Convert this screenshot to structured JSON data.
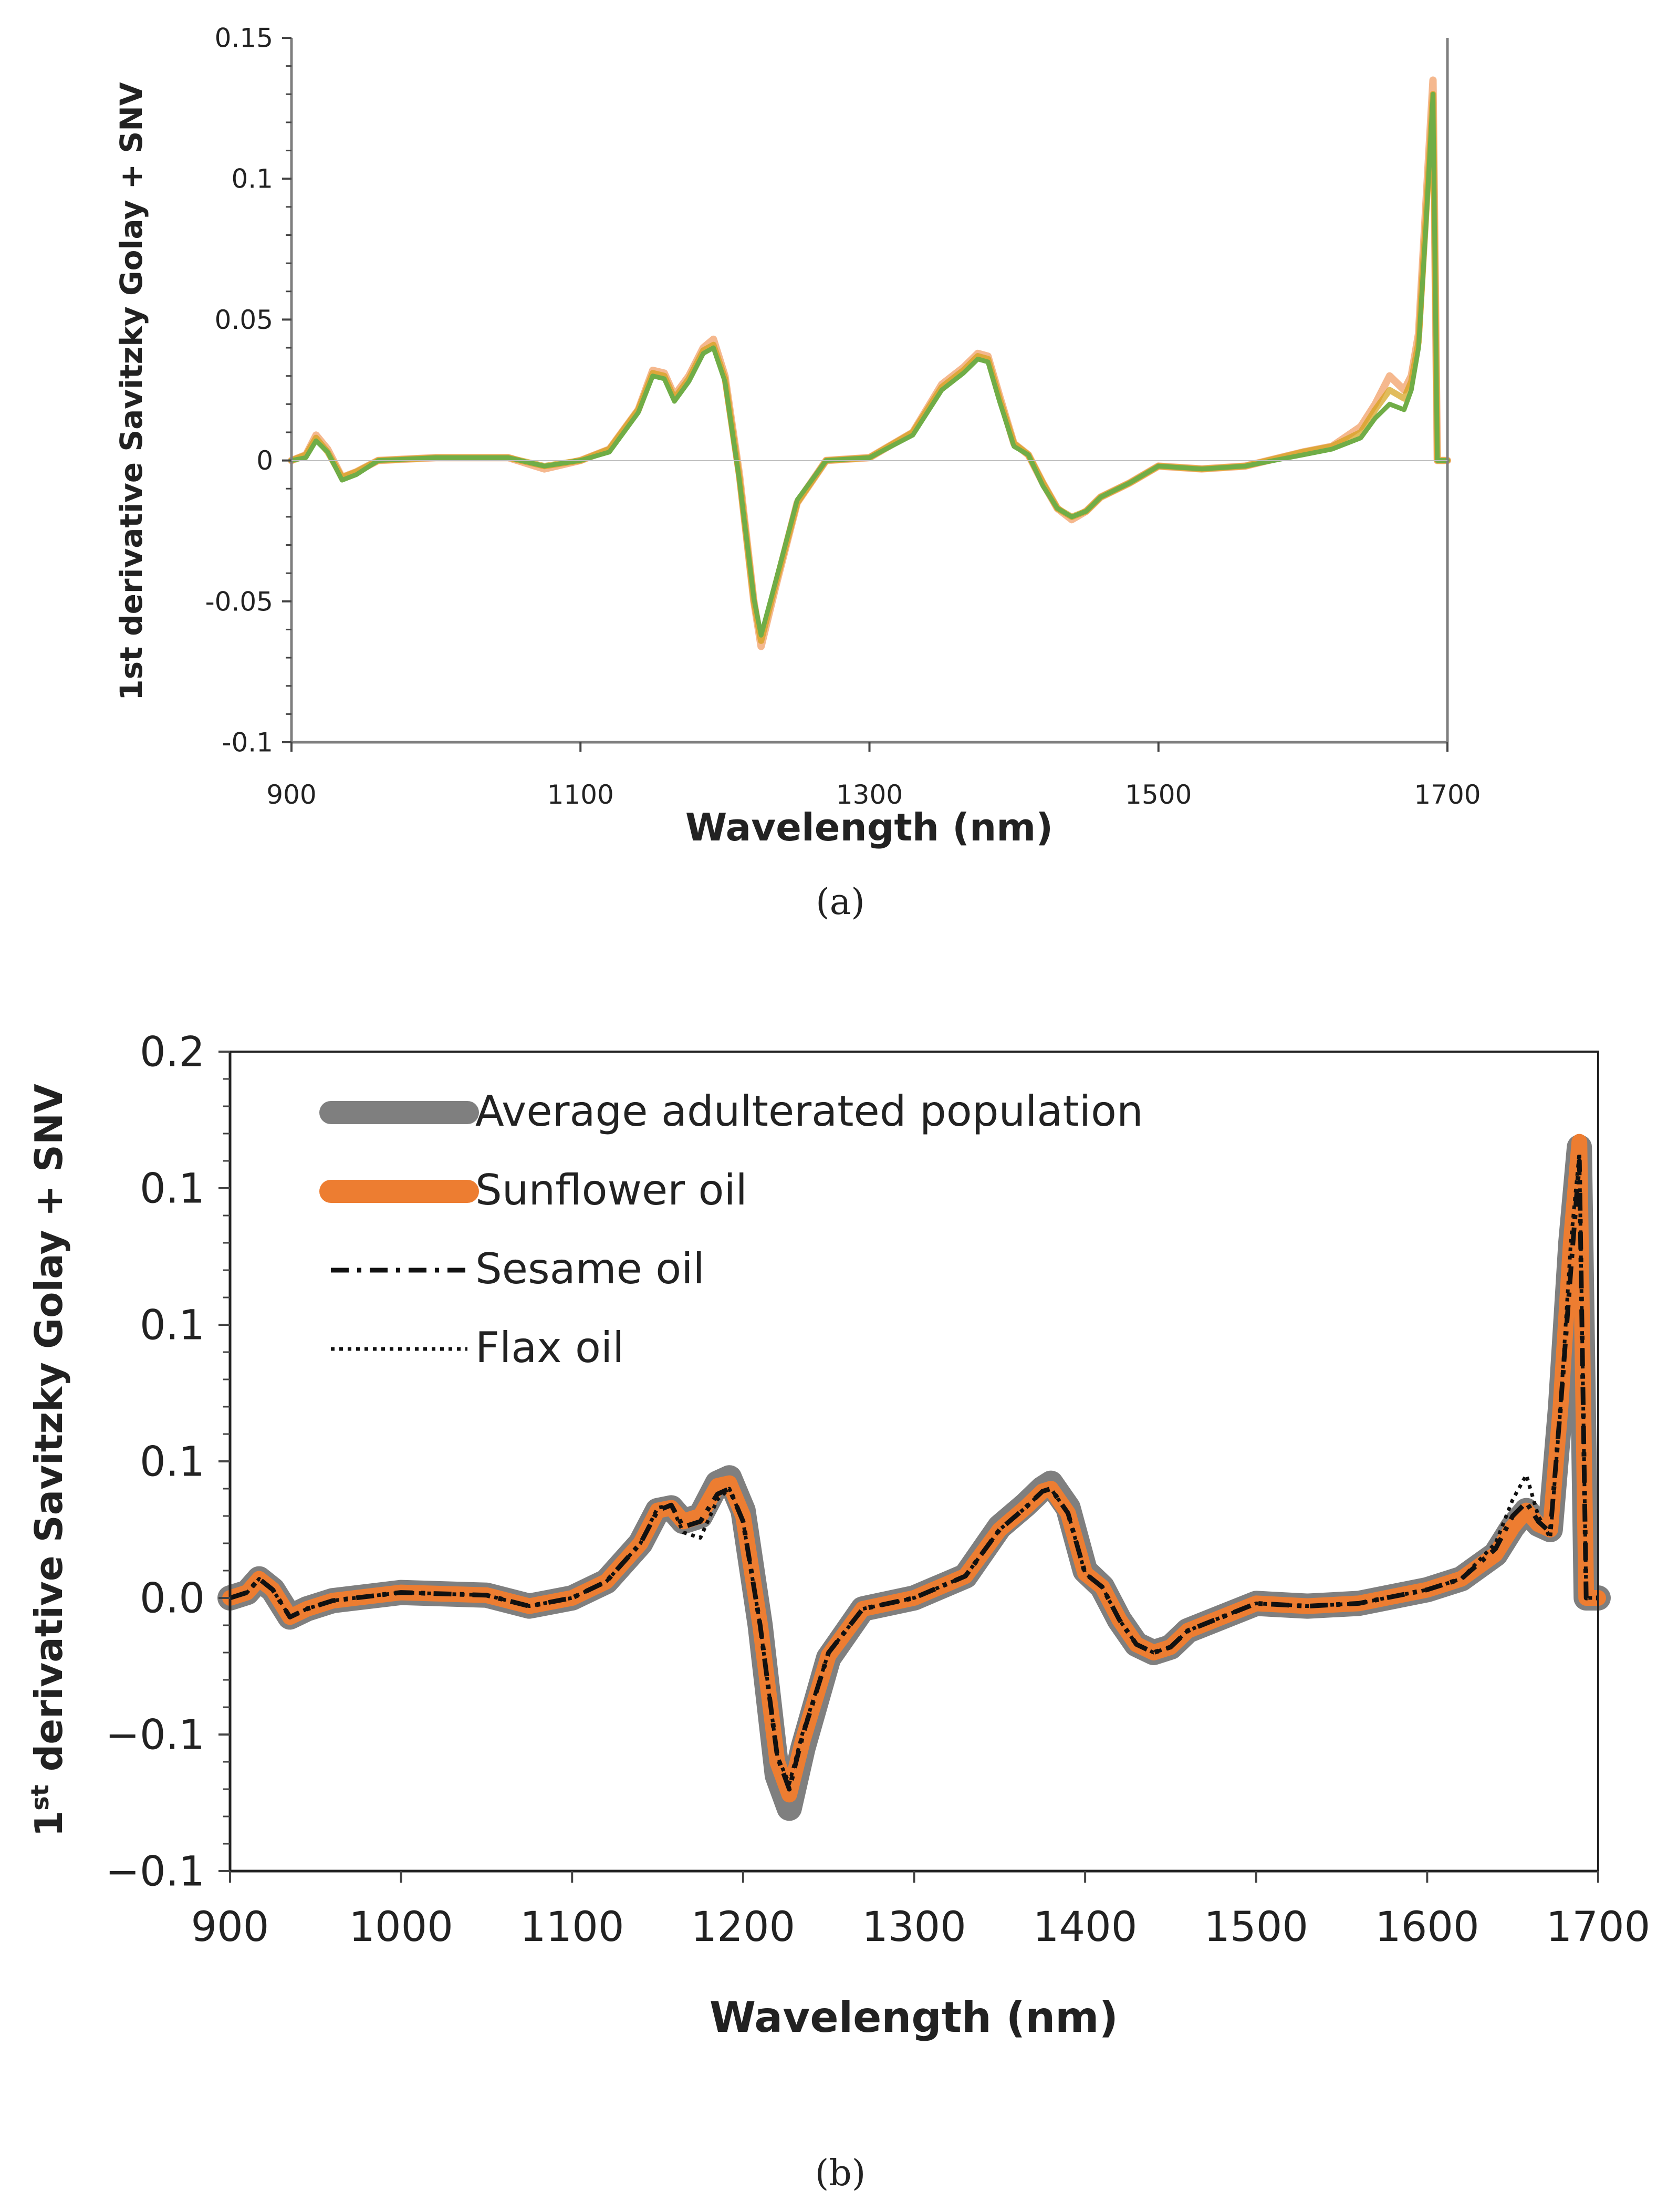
{
  "chart_data": [
    {
      "id": "a",
      "panel_label": "(a)",
      "type": "line",
      "title": "",
      "xlabel": "Wavelength (nm)",
      "ylabel": "1st derivative Savitzky Golay + SNV",
      "xlim": [
        900,
        1700
      ],
      "ylim": [
        -0.1,
        0.15
      ],
      "xticks": [
        900,
        1100,
        1300,
        1500,
        1700
      ],
      "xtick_labels": [
        "900",
        "1100",
        "1300",
        "1500",
        "1700"
      ],
      "yticks": [
        -0.1,
        -0.05,
        0,
        0.05,
        0.1,
        0.15
      ],
      "ytick_labels": [
        "-0.1",
        "-0.05",
        "0",
        "0.05",
        "0.1",
        "0.15"
      ],
      "grid": false,
      "legend": "none",
      "series": [
        {
          "name": "sample spectra (orange)",
          "color": "#ED7D31",
          "x": [
            900,
            910,
            917,
            925,
            935,
            945,
            960,
            1000,
            1050,
            1075,
            1100,
            1120,
            1140,
            1150,
            1158,
            1165,
            1175,
            1185,
            1192,
            1200,
            1210,
            1220,
            1225,
            1235,
            1250,
            1270,
            1300,
            1330,
            1350,
            1365,
            1375,
            1382,
            1390,
            1400,
            1410,
            1420,
            1430,
            1440,
            1450,
            1460,
            1480,
            1500,
            1530,
            1560,
            1600,
            1620,
            1640,
            1650,
            1660,
            1670,
            1675,
            1680,
            1685,
            1690,
            1693,
            1700
          ],
          "y": [
            0,
            0.002,
            0.009,
            0.004,
            -0.006,
            -0.004,
            0,
            0.001,
            0.001,
            -0.003,
            0,
            0.004,
            0.018,
            0.032,
            0.031,
            0.023,
            0.03,
            0.04,
            0.043,
            0.03,
            -0.005,
            -0.05,
            -0.066,
            -0.045,
            -0.015,
            0,
            0.001,
            0.01,
            0.027,
            0.033,
            0.038,
            0.037,
            0.023,
            0.006,
            0.002,
            -0.008,
            -0.017,
            -0.021,
            -0.018,
            -0.013,
            -0.008,
            -0.002,
            -0.003,
            -0.002,
            0.003,
            0.005,
            0.012,
            0.02,
            0.03,
            0.025,
            0.03,
            0.045,
            0.09,
            0.135,
            0,
            0
          ]
        },
        {
          "name": "sample spectra (gold)",
          "color": "#D4A017",
          "x": [
            900,
            910,
            917,
            925,
            935,
            945,
            960,
            1000,
            1050,
            1075,
            1100,
            1120,
            1140,
            1150,
            1158,
            1165,
            1175,
            1185,
            1192,
            1200,
            1210,
            1220,
            1225,
            1235,
            1250,
            1270,
            1300,
            1330,
            1350,
            1365,
            1375,
            1382,
            1390,
            1400,
            1410,
            1420,
            1430,
            1440,
            1450,
            1460,
            1480,
            1500,
            1530,
            1560,
            1600,
            1620,
            1640,
            1650,
            1660,
            1670,
            1675,
            1680,
            1685,
            1690,
            1693,
            1700
          ],
          "y": [
            0,
            0.002,
            0.008,
            0.003,
            -0.006,
            -0.004,
            0,
            0.001,
            0.001,
            -0.002,
            0,
            0.004,
            0.018,
            0.031,
            0.03,
            0.022,
            0.029,
            0.039,
            0.041,
            0.029,
            -0.006,
            -0.05,
            -0.064,
            -0.044,
            -0.015,
            0,
            0.001,
            0.01,
            0.026,
            0.032,
            0.037,
            0.036,
            0.022,
            0.006,
            0.002,
            -0.008,
            -0.017,
            -0.02,
            -0.018,
            -0.013,
            -0.008,
            -0.002,
            -0.003,
            -0.002,
            0.003,
            0.005,
            0.01,
            0.018,
            0.025,
            0.022,
            0.028,
            0.042,
            0.085,
            0.13,
            0,
            0
          ]
        },
        {
          "name": "sample spectra (green)",
          "color": "#70AD47",
          "x": [
            900,
            910,
            917,
            925,
            935,
            945,
            960,
            1000,
            1050,
            1075,
            1100,
            1120,
            1140,
            1150,
            1158,
            1165,
            1175,
            1185,
            1192,
            1200,
            1210,
            1220,
            1225,
            1235,
            1250,
            1270,
            1300,
            1330,
            1350,
            1365,
            1375,
            1382,
            1390,
            1400,
            1410,
            1420,
            1430,
            1440,
            1450,
            1460,
            1480,
            1500,
            1530,
            1560,
            1600,
            1620,
            1640,
            1650,
            1660,
            1670,
            1675,
            1680,
            1685,
            1690,
            1693,
            1700
          ],
          "y": [
            0,
            0.001,
            0.007,
            0.003,
            -0.007,
            -0.005,
            0,
            0.001,
            0.001,
            -0.002,
            0,
            0.003,
            0.017,
            0.03,
            0.029,
            0.021,
            0.028,
            0.038,
            0.04,
            0.028,
            -0.007,
            -0.049,
            -0.062,
            -0.043,
            -0.014,
            0,
            0.001,
            0.009,
            0.025,
            0.031,
            0.036,
            0.035,
            0.021,
            0.005,
            0.002,
            -0.009,
            -0.017,
            -0.02,
            -0.018,
            -0.013,
            -0.008,
            -0.002,
            -0.003,
            -0.002,
            0.002,
            0.004,
            0.008,
            0.015,
            0.02,
            0.018,
            0.025,
            0.04,
            0.082,
            0.13,
            0,
            0
          ]
        }
      ]
    },
    {
      "id": "b",
      "panel_label": "(b)",
      "type": "line",
      "title": "",
      "xlabel": "Wavelength (nm)",
      "ylabel_base": "1",
      "ylabel_superscript": "st",
      "ylabel_rest": " derivative Savitzky Golay + SNV",
      "xlim": [
        900,
        1700
      ],
      "ylim": [
        -0.1,
        0.2
      ],
      "xticks": [
        900,
        1000,
        1100,
        1200,
        1300,
        1400,
        1500,
        1600,
        1700
      ],
      "xtick_labels": [
        "900",
        "1000",
        "1100",
        "1200",
        "1300",
        "1400",
        "1500",
        "1600",
        "1700"
      ],
      "yticks": [
        -0.1,
        -0.05,
        0,
        0.05,
        0.1,
        0.15,
        0.2
      ],
      "ytick_labels": [
        "−0.1",
        "−0.1",
        "0.0",
        "0.1",
        "0.1",
        "0.1",
        "0.2"
      ],
      "grid": false,
      "legend": "top-left",
      "series": [
        {
          "name": "Average adulterated population",
          "color": "#7F7F7F",
          "style": "thick-solid",
          "x": [
            900,
            910,
            917,
            925,
            935,
            945,
            960,
            1000,
            1050,
            1075,
            1100,
            1120,
            1140,
            1150,
            1158,
            1165,
            1175,
            1185,
            1192,
            1200,
            1210,
            1220,
            1227,
            1235,
            1250,
            1270,
            1300,
            1330,
            1350,
            1365,
            1375,
            1380,
            1390,
            1400,
            1410,
            1420,
            1430,
            1440,
            1450,
            1460,
            1480,
            1500,
            1530,
            1560,
            1600,
            1620,
            1640,
            1650,
            1658,
            1665,
            1672,
            1678,
            1684,
            1689,
            1693,
            1700
          ],
          "y": [
            0,
            0.002,
            0.007,
            0.003,
            -0.007,
            -0.004,
            -0.001,
            0.002,
            0.001,
            -0.003,
            0,
            0.006,
            0.02,
            0.032,
            0.033,
            0.028,
            0.03,
            0.042,
            0.044,
            0.032,
            -0.01,
            -0.065,
            -0.077,
            -0.055,
            -0.022,
            -0.004,
            0,
            0.008,
            0.026,
            0.034,
            0.04,
            0.042,
            0.033,
            0.01,
            0.004,
            -0.008,
            -0.017,
            -0.02,
            -0.018,
            -0.012,
            -0.007,
            -0.002,
            -0.003,
            -0.002,
            0.003,
            0.007,
            0.016,
            0.026,
            0.032,
            0.027,
            0.025,
            0.07,
            0.13,
            0.165,
            0,
            0
          ]
        },
        {
          "name": "Sunflower oil",
          "color": "#ED7D31",
          "style": "thick-solid",
          "x": [
            900,
            910,
            917,
            925,
            935,
            945,
            960,
            1000,
            1050,
            1075,
            1100,
            1120,
            1140,
            1150,
            1158,
            1165,
            1175,
            1185,
            1192,
            1200,
            1210,
            1220,
            1227,
            1235,
            1250,
            1270,
            1300,
            1330,
            1350,
            1365,
            1375,
            1380,
            1390,
            1400,
            1410,
            1420,
            1430,
            1440,
            1450,
            1460,
            1480,
            1500,
            1530,
            1560,
            1600,
            1620,
            1640,
            1650,
            1658,
            1665,
            1672,
            1678,
            1684,
            1689,
            1693,
            1700
          ],
          "y": [
            0,
            0.002,
            0.007,
            0.003,
            -0.007,
            -0.004,
            -0.001,
            0.002,
            0.001,
            -0.003,
            0,
            0.006,
            0.02,
            0.032,
            0.033,
            0.028,
            0.03,
            0.041,
            0.042,
            0.03,
            -0.01,
            -0.06,
            -0.072,
            -0.052,
            -0.021,
            -0.004,
            0,
            0.008,
            0.025,
            0.033,
            0.039,
            0.04,
            0.031,
            0.009,
            0.004,
            -0.008,
            -0.017,
            -0.02,
            -0.018,
            -0.012,
            -0.007,
            -0.002,
            -0.003,
            -0.002,
            0.003,
            0.007,
            0.016,
            0.026,
            0.032,
            0.027,
            0.025,
            0.07,
            0.13,
            0.167,
            0,
            0
          ]
        },
        {
          "name": "Sesame oil",
          "color": "#111111",
          "style": "dash-dot",
          "x": [
            900,
            910,
            917,
            925,
            935,
            945,
            960,
            1000,
            1050,
            1075,
            1100,
            1120,
            1140,
            1150,
            1158,
            1165,
            1175,
            1185,
            1192,
            1200,
            1210,
            1220,
            1227,
            1235,
            1250,
            1270,
            1300,
            1330,
            1350,
            1365,
            1375,
            1380,
            1390,
            1400,
            1410,
            1420,
            1430,
            1440,
            1450,
            1460,
            1480,
            1500,
            1530,
            1560,
            1600,
            1620,
            1640,
            1650,
            1658,
            1665,
            1672,
            1678,
            1684,
            1689,
            1693,
            1700
          ],
          "y": [
            0,
            0.002,
            0.007,
            0.003,
            -0.007,
            -0.004,
            -0.001,
            0.002,
            0.001,
            -0.003,
            0,
            0.006,
            0.02,
            0.032,
            0.034,
            0.026,
            0.028,
            0.038,
            0.04,
            0.028,
            -0.01,
            -0.058,
            -0.07,
            -0.05,
            -0.02,
            -0.004,
            0,
            0.008,
            0.025,
            0.033,
            0.039,
            0.04,
            0.031,
            0.009,
            0.004,
            -0.008,
            -0.017,
            -0.02,
            -0.018,
            -0.012,
            -0.007,
            -0.002,
            -0.003,
            -0.002,
            0.003,
            0.007,
            0.018,
            0.03,
            0.035,
            0.028,
            0.024,
            0.07,
            0.12,
            0.16,
            0,
            0
          ]
        },
        {
          "name": "Flax oil",
          "color": "#111111",
          "style": "dotted",
          "x": [
            900,
            910,
            917,
            925,
            935,
            945,
            960,
            1000,
            1050,
            1075,
            1100,
            1120,
            1140,
            1150,
            1158,
            1165,
            1175,
            1185,
            1192,
            1200,
            1210,
            1220,
            1227,
            1235,
            1250,
            1270,
            1300,
            1330,
            1350,
            1365,
            1375,
            1380,
            1390,
            1400,
            1410,
            1420,
            1430,
            1440,
            1450,
            1460,
            1480,
            1500,
            1530,
            1560,
            1600,
            1620,
            1640,
            1650,
            1658,
            1665,
            1672,
            1678,
            1684,
            1689,
            1693,
            1700
          ],
          "y": [
            0,
            0.002,
            0.007,
            0.003,
            -0.007,
            -0.004,
            -0.001,
            0.002,
            0.001,
            -0.003,
            0,
            0.006,
            0.02,
            0.033,
            0.034,
            0.024,
            0.022,
            0.036,
            0.04,
            0.028,
            -0.01,
            -0.058,
            -0.068,
            -0.049,
            -0.02,
            -0.004,
            0,
            0.008,
            0.025,
            0.033,
            0.039,
            0.04,
            0.031,
            0.009,
            0.004,
            -0.008,
            -0.017,
            -0.02,
            -0.018,
            -0.012,
            -0.007,
            -0.002,
            -0.003,
            -0.002,
            0.003,
            0.007,
            0.02,
            0.036,
            0.045,
            0.03,
            0.022,
            0.07,
            0.13,
            0.163,
            0,
            0
          ]
        }
      ]
    }
  ]
}
